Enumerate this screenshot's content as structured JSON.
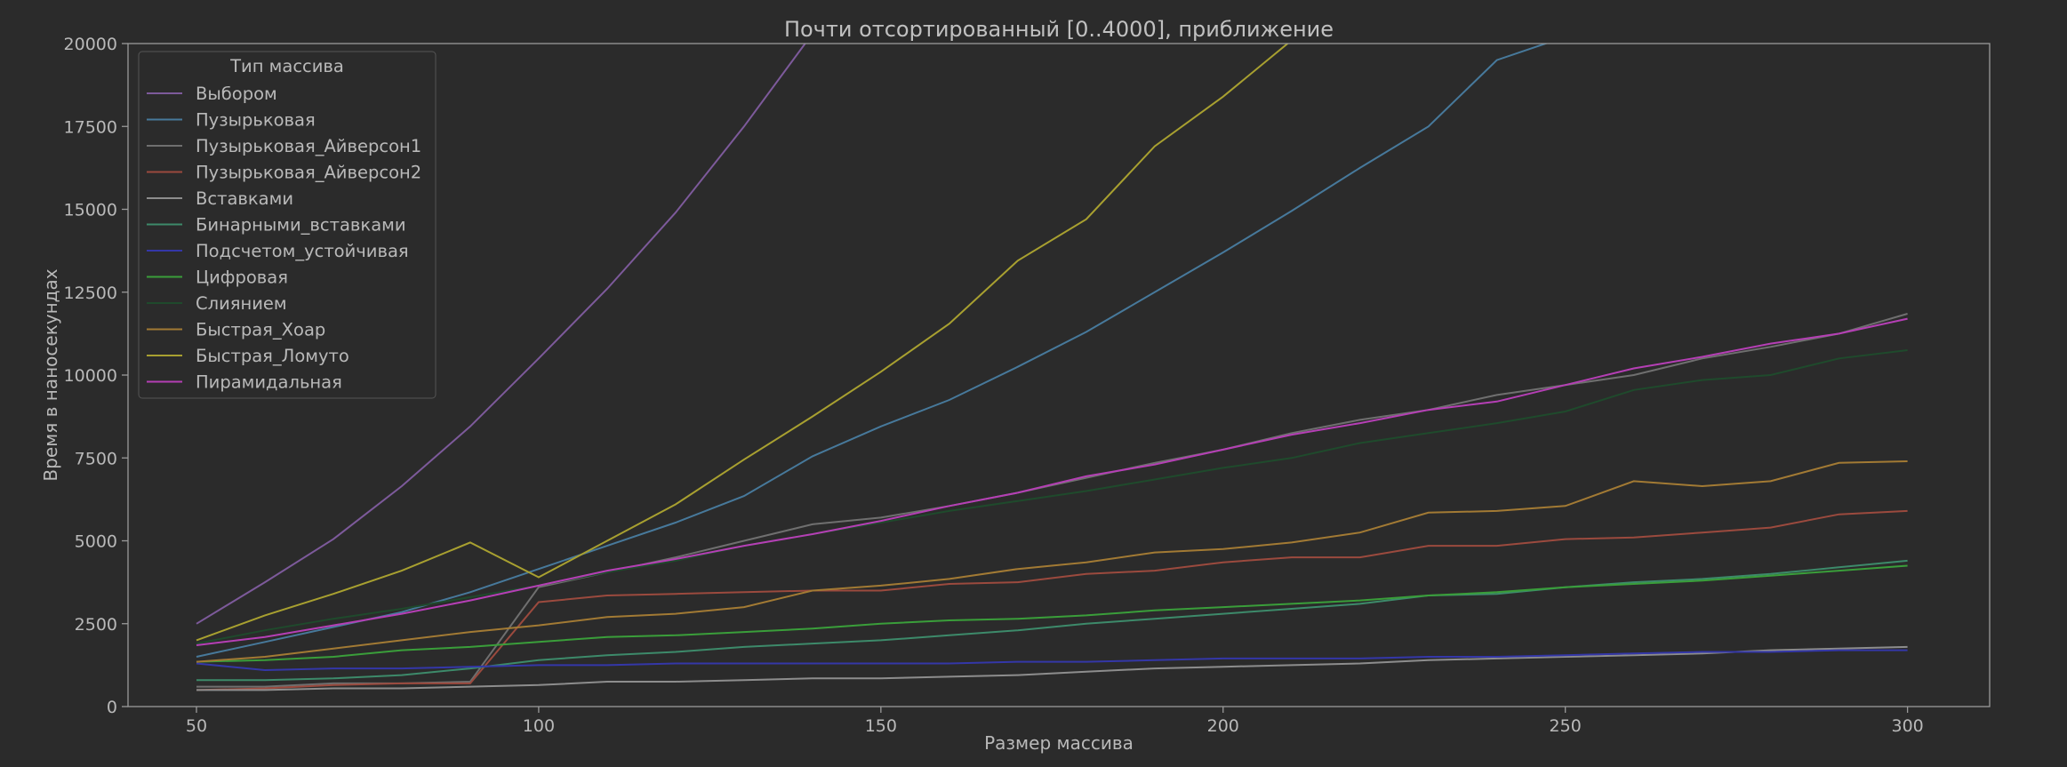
{
  "chart_data": {
    "type": "line",
    "title": "Почти отсортированный [0..4000], приближение",
    "xlabel": "Размер массива",
    "ylabel": "Время в наносекундах",
    "xlim": [
      40,
      312
    ],
    "ylim": [
      0,
      20000
    ],
    "xticks": [
      50,
      100,
      150,
      200,
      250,
      300
    ],
    "yticks": [
      0,
      2500,
      5000,
      7500,
      10000,
      12500,
      15000,
      17500,
      20000
    ],
    "grid": false,
    "legend_title": "Тип массива",
    "legend_position": "top-left",
    "x": [
      50,
      60,
      70,
      80,
      90,
      100,
      110,
      120,
      130,
      140,
      150,
      160,
      170,
      180,
      190,
      200,
      210,
      220,
      230,
      240,
      250,
      260,
      270,
      280,
      290,
      300
    ],
    "series": [
      {
        "name": "Выбором",
        "color": "#7d5a9b",
        "values": [
          2500,
          3750,
          5050,
          6650,
          8450,
          10500,
          12600,
          14900,
          17500,
          20300,
          null,
          null,
          null,
          null,
          null,
          null,
          null,
          null,
          null,
          null,
          null,
          null,
          null,
          null,
          null,
          null
        ]
      },
      {
        "name": "Пузырьковая",
        "color": "#47799b",
        "values": [
          1500,
          1950,
          2400,
          2850,
          3450,
          4150,
          4850,
          5550,
          6350,
          7550,
          8450,
          9250,
          10250,
          11300,
          12500,
          13700,
          14950,
          16250,
          17500,
          19500,
          20200,
          null,
          null,
          null,
          null,
          null
        ]
      },
      {
        "name": "Пузырьковая_Айверсон1",
        "color": "#6f6f6f",
        "values": [
          600,
          600,
          700,
          700,
          750,
          3600,
          4050,
          4500,
          5000,
          5500,
          5700,
          6050,
          6450,
          6900,
          7350,
          7750,
          8250,
          8650,
          8950,
          9400,
          9700,
          10000,
          10500,
          10850,
          11250,
          11850
        ]
      },
      {
        "name": "Пузырьковая_Айверсон2",
        "color": "#9b4a3e",
        "values": [
          500,
          550,
          650,
          700,
          700,
          3150,
          3350,
          3400,
          3450,
          3500,
          3500,
          3700,
          3750,
          4000,
          4100,
          4350,
          4500,
          4500,
          4850,
          4850,
          5050,
          5100,
          5250,
          5400,
          5800,
          5900
        ]
      },
      {
        "name": "Вставками",
        "color": "#8d8d8d",
        "values": [
          500,
          500,
          550,
          550,
          600,
          650,
          750,
          750,
          800,
          850,
          850,
          900,
          950,
          1050,
          1150,
          1200,
          1250,
          1300,
          1400,
          1450,
          1500,
          1550,
          1600,
          1700,
          1750,
          1800
        ]
      },
      {
        "name": "Бинарными_вставками",
        "color": "#3d8a6a",
        "values": [
          800,
          800,
          850,
          950,
          1150,
          1400,
          1550,
          1650,
          1800,
          1900,
          2000,
          2150,
          2300,
          2500,
          2650,
          2800,
          2950,
          3100,
          3350,
          3400,
          3600,
          3750,
          3850,
          4000,
          4200,
          4400
        ]
      },
      {
        "name": "Подсчетом_устойчивая",
        "color": "#3437a8",
        "values": [
          1300,
          1100,
          1150,
          1150,
          1200,
          1250,
          1250,
          1300,
          1300,
          1300,
          1300,
          1300,
          1350,
          1350,
          1400,
          1450,
          1450,
          1450,
          1500,
          1500,
          1550,
          1600,
          1650,
          1650,
          1700,
          1700
        ]
      },
      {
        "name": "Цифровая",
        "color": "#3a9e3a",
        "values": [
          1350,
          1400,
          1500,
          1700,
          1800,
          1950,
          2100,
          2150,
          2250,
          2350,
          2500,
          2600,
          2650,
          2750,
          2900,
          3000,
          3100,
          3200,
          3350,
          3450,
          3600,
          3700,
          3800,
          3950,
          4100,
          4250
        ]
      },
      {
        "name": "Слиянием",
        "color": "#1f4a2c",
        "values": [
          1900,
          2300,
          2650,
          2950,
          3300,
          3650,
          4050,
          4400,
          4850,
          5200,
          5550,
          5900,
          6200,
          6500,
          6850,
          7200,
          7500,
          7950,
          8250,
          8550,
          8900,
          9550,
          9850,
          10000,
          10500,
          10750
        ]
      },
      {
        "name": "Быстрая_Хоар",
        "color": "#a27a34",
        "values": [
          1350,
          1500,
          1750,
          2000,
          2250,
          2450,
          2700,
          2800,
          3000,
          3500,
          3650,
          3850,
          4150,
          4350,
          4650,
          4750,
          4950,
          5250,
          5850,
          5900,
          6050,
          6800,
          6650,
          6800,
          7350,
          7400
        ]
      },
      {
        "name": "Быстрая_Ломуто",
        "color": "#a8a030",
        "values": [
          2000,
          2750,
          3400,
          4100,
          4950,
          3900,
          5000,
          6100,
          7450,
          8750,
          10100,
          11550,
          13450,
          14700,
          16900,
          18400,
          20100,
          null,
          null,
          null,
          null,
          null,
          null,
          null,
          null,
          null
        ]
      },
      {
        "name": "Пирамидальная",
        "color": "#b53fb5",
        "values": [
          1850,
          2100,
          2450,
          2800,
          3200,
          3650,
          4100,
          4450,
          4850,
          5200,
          5600,
          6050,
          6450,
          6950,
          7300,
          7750,
          8200,
          8550,
          8950,
          9200,
          9700,
          10200,
          10550,
          10950,
          11250,
          11700
        ]
      }
    ]
  }
}
